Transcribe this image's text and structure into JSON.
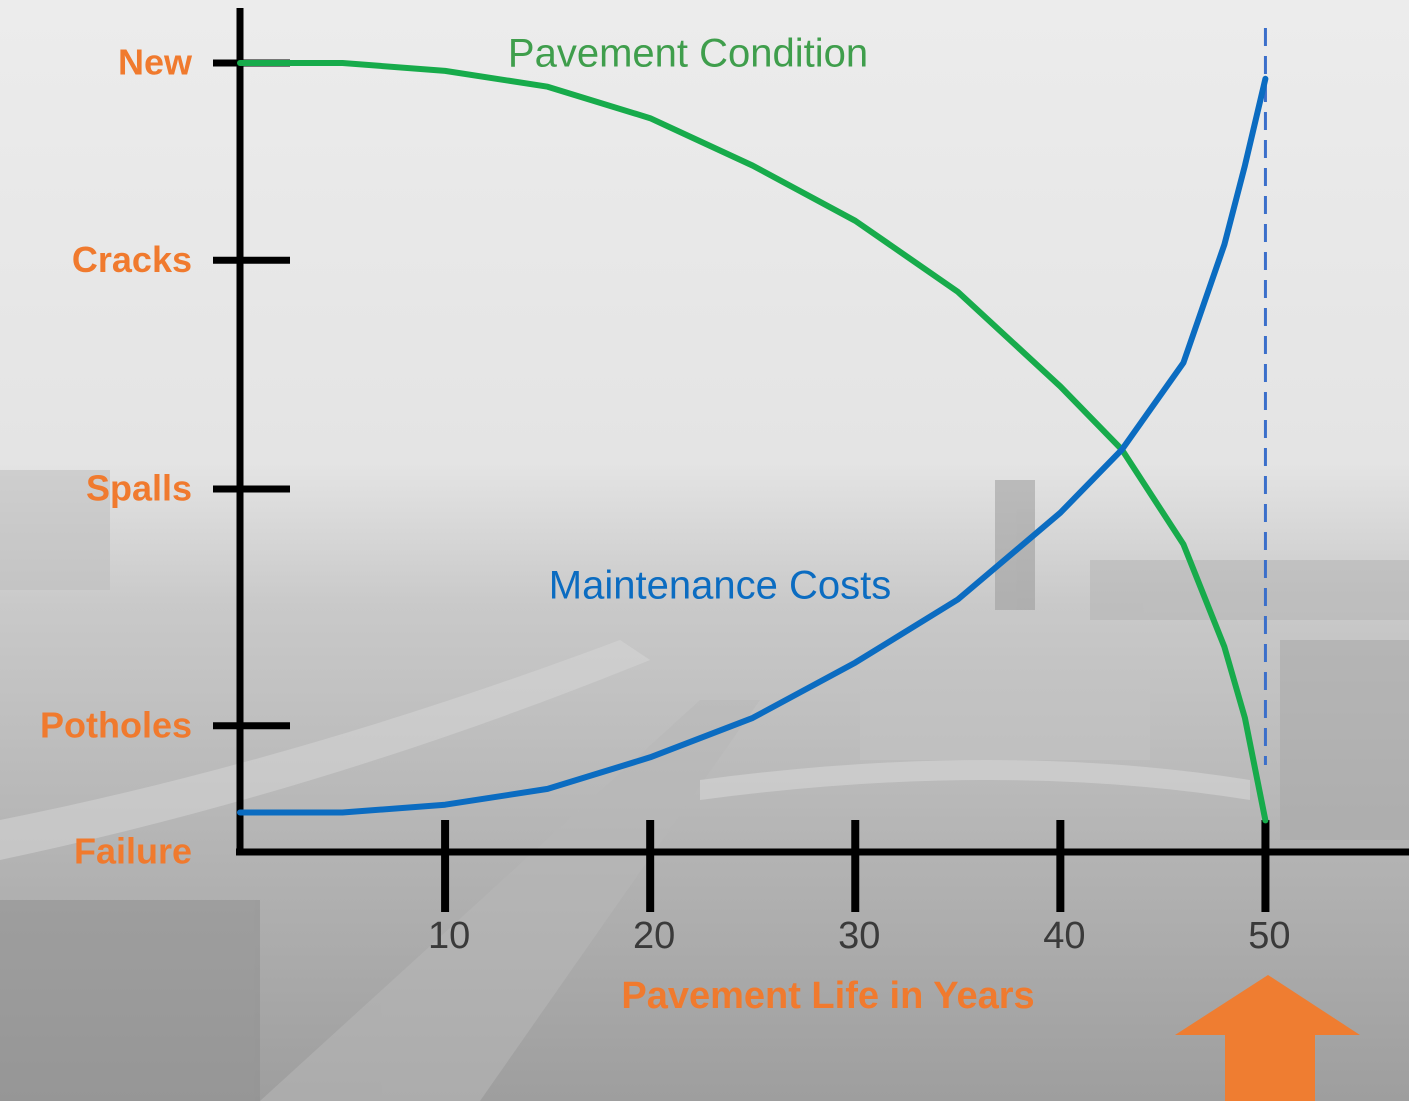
{
  "chart_data": {
    "type": "line",
    "x_label": "Pavement Life in Years",
    "x": [
      0,
      5,
      10,
      15,
      20,
      25,
      30,
      35,
      40,
      43,
      46,
      48,
      49,
      50
    ],
    "series": [
      {
        "name": "Pavement Condition",
        "color": "#17ab4b",
        "values": [
          100,
          100,
          99,
          97,
          93,
          87,
          80,
          71,
          59,
          51,
          39,
          26,
          17,
          4
        ]
      },
      {
        "name": "Maintenance Costs",
        "color": "#0b6cc1",
        "values": [
          5,
          5,
          6,
          8,
          12,
          17,
          24,
          32,
          43,
          51,
          62,
          77,
          87,
          98
        ]
      }
    ],
    "xlim": [
      0,
      57
    ],
    "xticks": [
      10,
      20,
      30,
      40,
      50
    ],
    "ylim": [
      0,
      100
    ],
    "yticks": [
      {
        "value": 0,
        "label": "Failure"
      },
      {
        "value": 16,
        "label": "Potholes"
      },
      {
        "value": 46,
        "label": "Spalls"
      },
      {
        "value": 75,
        "label": "Cracks"
      },
      {
        "value": 100,
        "label": "New"
      }
    ],
    "vline_x": 50
  }
}
